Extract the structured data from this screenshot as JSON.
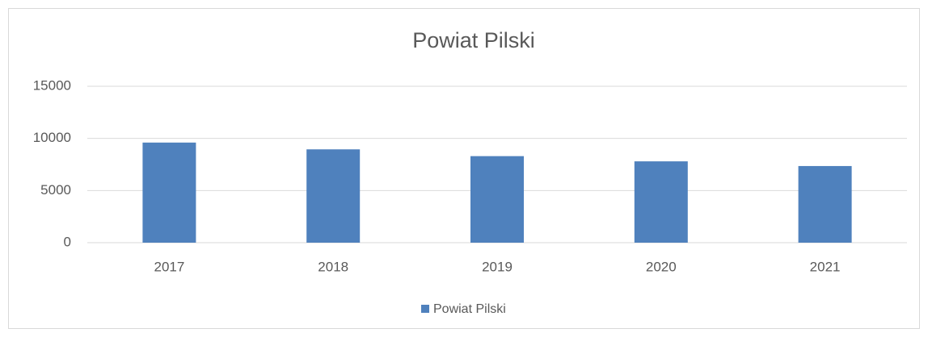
{
  "chart_data": {
    "type": "bar",
    "title": "Powiat Pilski",
    "categories": [
      "2017",
      "2018",
      "2019",
      "2020",
      "2021"
    ],
    "series": [
      {
        "name": "Powiat Pilski",
        "color": "#4f81bd",
        "values": [
          9600,
          8950,
          8300,
          7800,
          7350
        ]
      }
    ],
    "ylim": [
      0,
      15000
    ],
    "yticks": [
      0,
      5000,
      10000,
      15000
    ],
    "grid": true,
    "legend": "bottom"
  }
}
